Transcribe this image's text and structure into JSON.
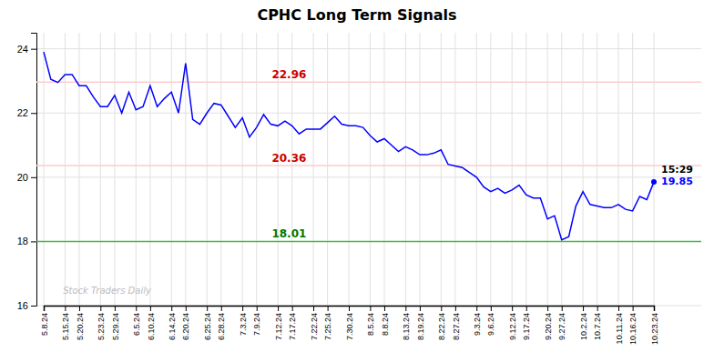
{
  "chart_data": {
    "type": "line",
    "title": "CPHC Long Term Signals",
    "categories": [
      "5.8.24",
      null,
      null,
      "5.15.24",
      null,
      "5.20.24",
      null,
      null,
      "5.23.24",
      null,
      "5.29.24",
      null,
      null,
      "6.5.24",
      null,
      "6.10.24",
      null,
      null,
      "6.14.24",
      null,
      "6.20.24",
      null,
      null,
      "6.25.24",
      null,
      "6.28.24",
      null,
      null,
      "7.3.24",
      null,
      "7.9.24",
      null,
      null,
      "7.12.24",
      null,
      "7.17.24",
      null,
      null,
      "7.22.24",
      null,
      "7.25.24",
      null,
      null,
      "7.30.24",
      null,
      null,
      "8.5.24",
      null,
      "8.8.24",
      null,
      null,
      "8.13.24",
      null,
      "8.19.24",
      null,
      null,
      "8.22.24",
      null,
      "8.27.24",
      null,
      null,
      "9.3.24",
      null,
      "9.6.24",
      null,
      null,
      "9.12.24",
      null,
      "9.17.24",
      null,
      null,
      "9.20.24",
      null,
      "9.27.24",
      null,
      null,
      "10.2.24",
      null,
      "10.7.24",
      null,
      null,
      "10.11.24",
      null,
      "10.16.24",
      null,
      null,
      "10.23.24"
    ],
    "values": [
      23.9,
      23.05,
      22.95,
      23.2,
      23.2,
      22.85,
      22.85,
      22.5,
      22.2,
      22.2,
      22.55,
      22.0,
      22.65,
      22.1,
      22.2,
      22.85,
      22.2,
      22.45,
      22.65,
      22.0,
      23.55,
      21.8,
      21.65,
      22.0,
      22.3,
      22.25,
      21.9,
      21.55,
      21.85,
      21.25,
      21.55,
      21.95,
      21.65,
      21.6,
      21.75,
      21.6,
      21.35,
      21.5,
      21.5,
      21.5,
      21.7,
      21.9,
      21.65,
      21.6,
      21.6,
      21.55,
      21.3,
      21.1,
      21.2,
      21.0,
      20.8,
      20.95,
      20.85,
      20.7,
      20.7,
      20.75,
      20.85,
      20.4,
      20.35,
      20.3,
      20.15,
      20.0,
      19.7,
      19.55,
      19.65,
      19.5,
      19.6,
      19.75,
      19.45,
      19.35,
      19.35,
      18.7,
      18.8,
      18.05,
      18.15,
      19.1,
      19.55,
      19.15,
      19.1,
      19.05,
      19.05,
      19.15,
      19.0,
      18.95,
      19.4,
      19.3,
      19.85
    ],
    "color": "blue",
    "ylim": [
      16,
      24.5
    ],
    "yticks": [
      16,
      18,
      20,
      22,
      24
    ],
    "grid": true,
    "reference_lines": [
      {
        "value": 22.96,
        "label": "22.96",
        "color": "#ffcccc",
        "label_color": "#cc0000"
      },
      {
        "value": 20.36,
        "label": "20.36",
        "color": "#ffcccc",
        "label_color": "#cc0000"
      },
      {
        "value": 18.0,
        "label": "18.01",
        "color": "#44bb44",
        "label_color": "#007700"
      }
    ],
    "watermark": "Stock Traders Daily",
    "last_labels": [
      {
        "text": "15:29",
        "color": "black"
      },
      {
        "text": "19.85",
        "color": "blue"
      }
    ]
  }
}
